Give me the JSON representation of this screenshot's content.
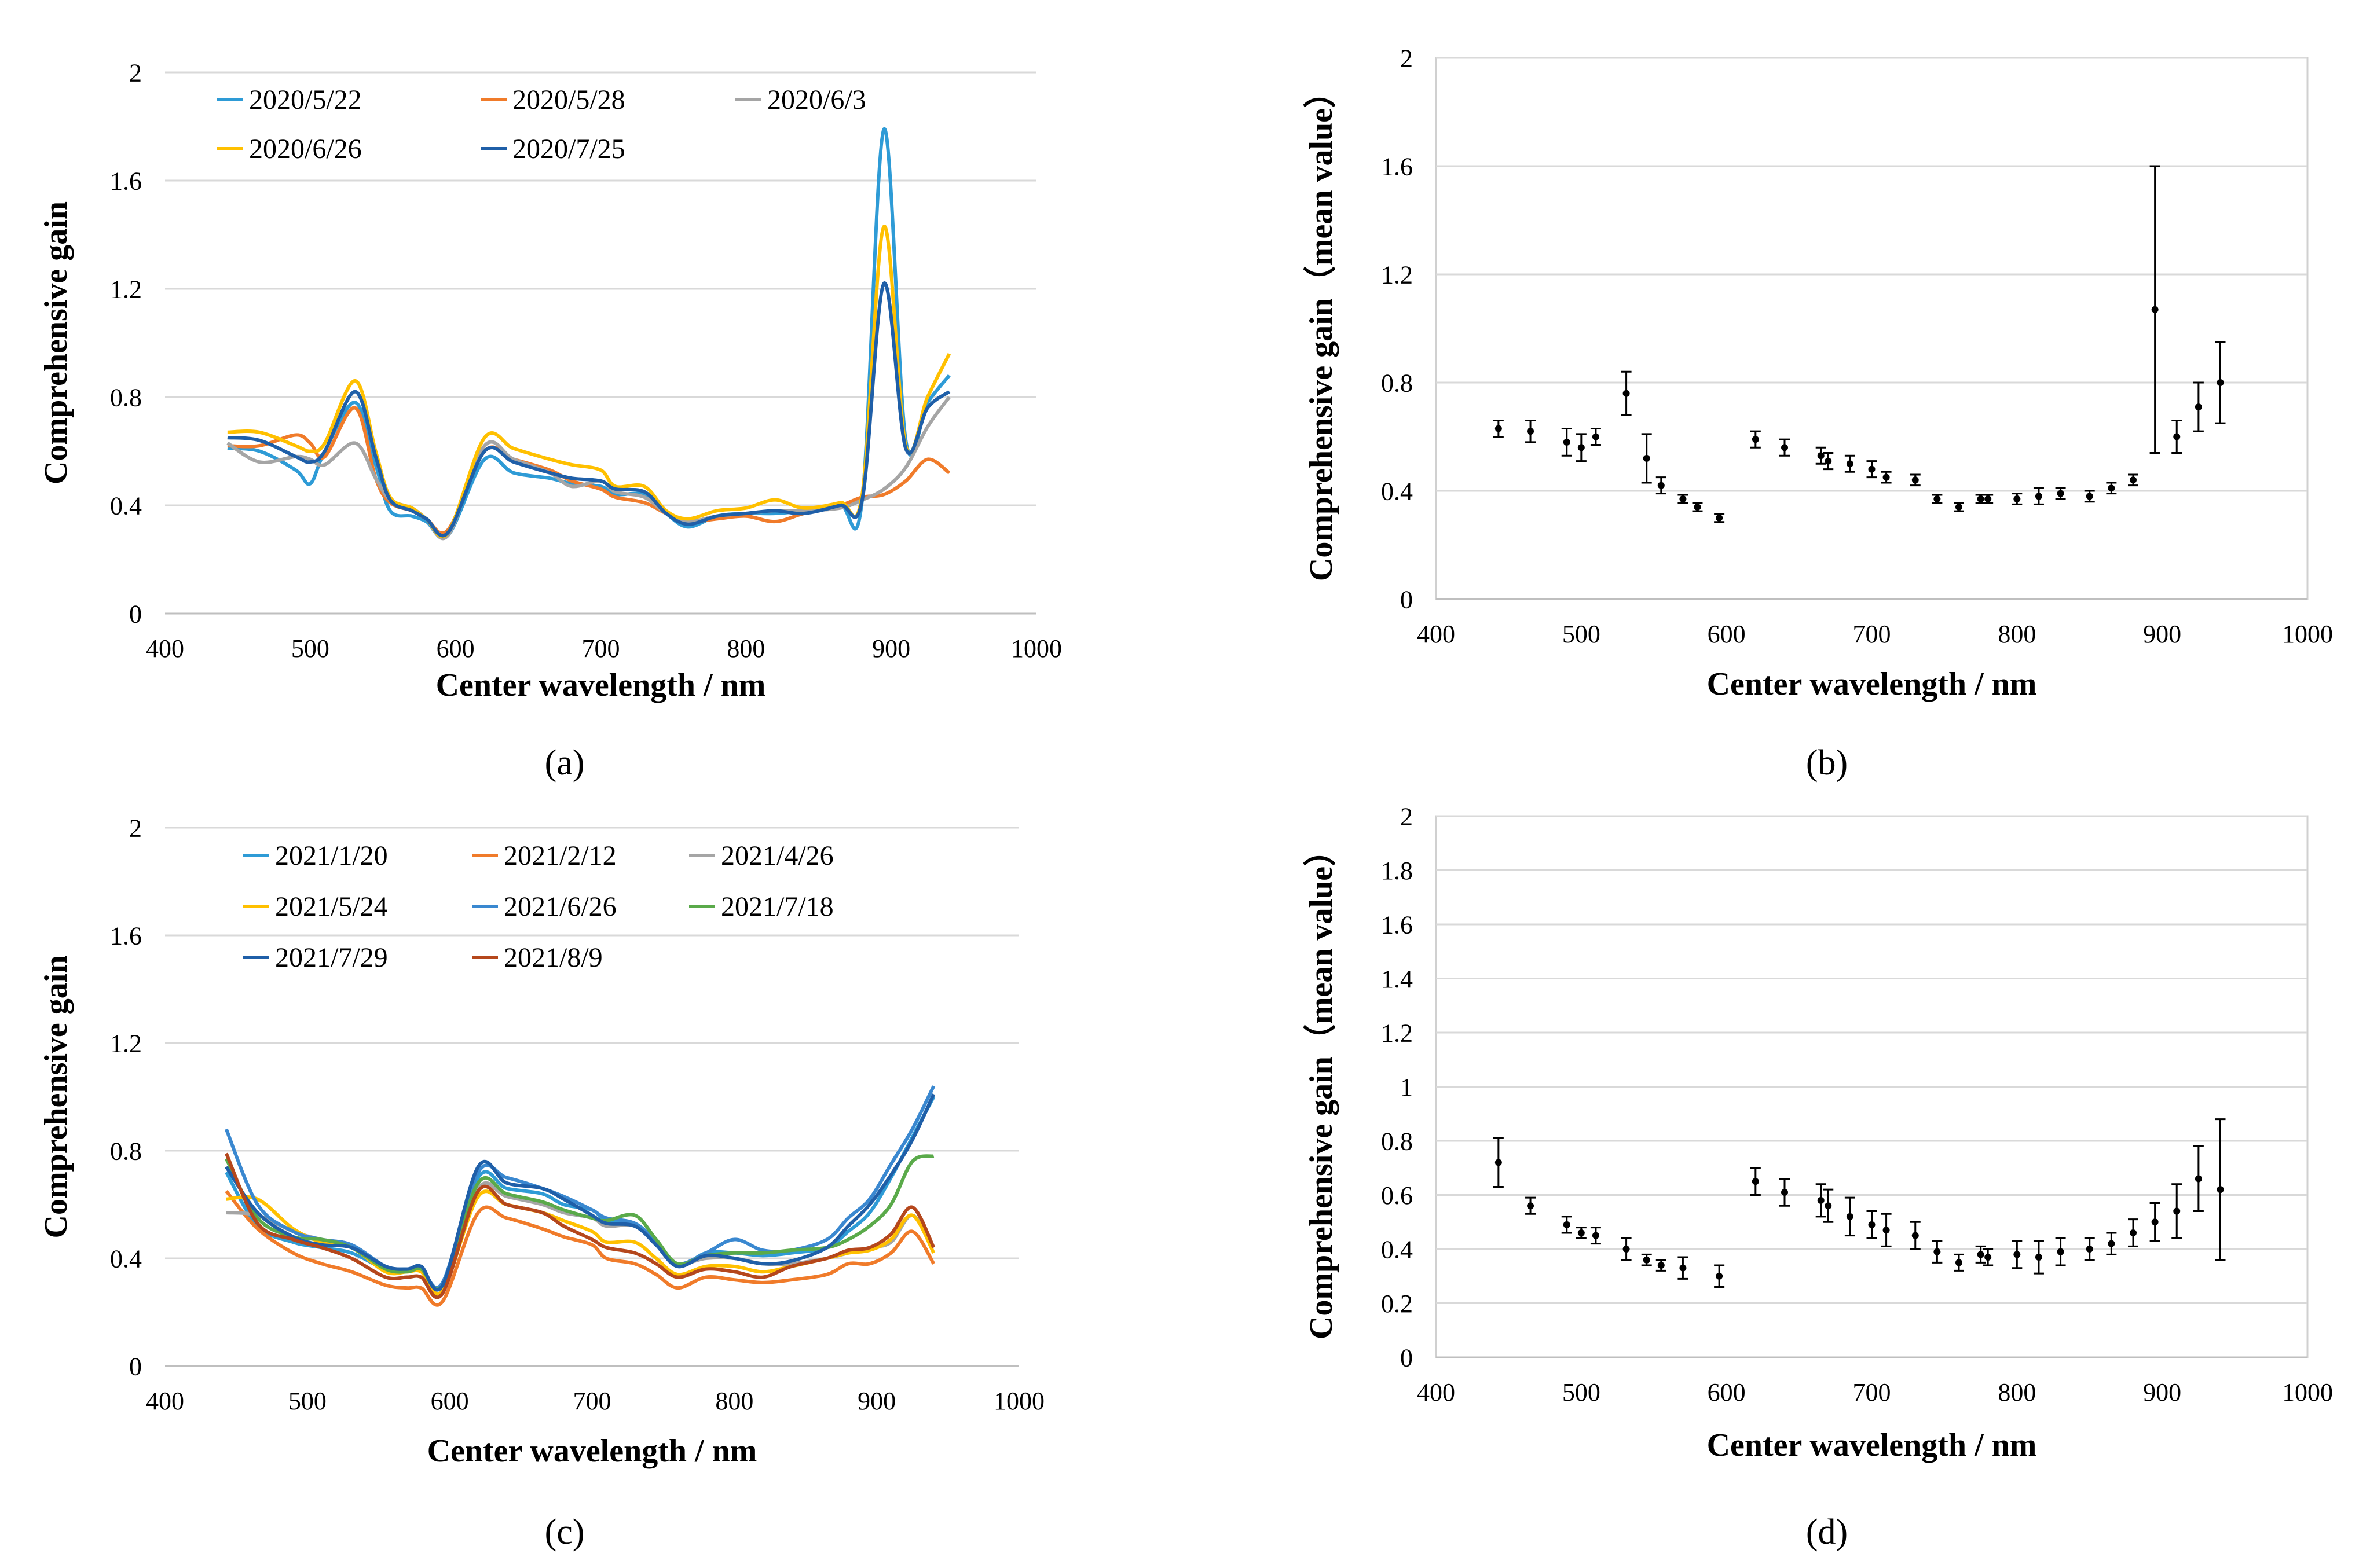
{
  "captions": [
    "(a)",
    "(b)",
    "(c)",
    "(d)"
  ],
  "chart_data": [
    {
      "id": "a",
      "type": "line",
      "xlabel": "Center wavelength / nm",
      "ylabel": "Comprehensive gain",
      "xlim": [
        400,
        1000
      ],
      "ylim": [
        0,
        2
      ],
      "xticks": [
        400,
        500,
        600,
        700,
        800,
        900,
        1000
      ],
      "yticks": [
        "0",
        "0.4",
        "0.8",
        "1.2",
        "1.6",
        "2"
      ],
      "grid": "horizontal",
      "legend": "top",
      "series": [
        {
          "name": "2020/5/22",
          "color": "#2e9bd6",
          "x": [
            443,
            465,
            490,
            500,
            510,
            531,
            545,
            555,
            570,
            580,
            595,
            620,
            640,
            665,
            680,
            700,
            710,
            730,
            745,
            760,
            780,
            800,
            820,
            840,
            865,
            880,
            895,
            910,
            925,
            940
          ],
          "y": [
            0.61,
            0.6,
            0.53,
            0.48,
            0.6,
            0.78,
            0.55,
            0.38,
            0.36,
            0.34,
            0.29,
            0.57,
            0.52,
            0.5,
            0.48,
            0.47,
            0.44,
            0.44,
            0.37,
            0.32,
            0.36,
            0.37,
            0.37,
            0.38,
            0.4,
            0.42,
            1.79,
            0.64,
            0.78,
            0.88
          ]
        },
        {
          "name": "2020/5/28",
          "color": "#f07b2a",
          "x": [
            443,
            465,
            490,
            500,
            510,
            531,
            545,
            555,
            570,
            580,
            595,
            620,
            640,
            665,
            680,
            700,
            710,
            730,
            745,
            760,
            780,
            800,
            820,
            840,
            865,
            880,
            895,
            910,
            925,
            940
          ],
          "y": [
            0.62,
            0.62,
            0.66,
            0.63,
            0.58,
            0.76,
            0.5,
            0.41,
            0.38,
            0.35,
            0.31,
            0.6,
            0.57,
            0.53,
            0.49,
            0.46,
            0.43,
            0.41,
            0.37,
            0.34,
            0.35,
            0.36,
            0.34,
            0.37,
            0.4,
            0.43,
            0.44,
            0.49,
            0.57,
            0.52
          ]
        },
        {
          "name": "2020/6/3",
          "color": "#a5a5a5",
          "x": [
            443,
            465,
            490,
            500,
            510,
            531,
            545,
            555,
            570,
            580,
            595,
            620,
            640,
            665,
            680,
            700,
            710,
            730,
            745,
            760,
            780,
            800,
            820,
            840,
            865,
            880,
            895,
            910,
            925,
            940
          ],
          "y": [
            0.63,
            0.56,
            0.58,
            0.57,
            0.55,
            0.63,
            0.5,
            0.42,
            0.39,
            0.35,
            0.29,
            0.62,
            0.57,
            0.52,
            0.47,
            0.49,
            0.45,
            0.43,
            0.37,
            0.34,
            0.36,
            0.37,
            0.38,
            0.38,
            0.39,
            0.42,
            0.46,
            0.54,
            0.69,
            0.8
          ]
        },
        {
          "name": "2020/6/26",
          "color": "#ffc000",
          "x": [
            443,
            465,
            490,
            500,
            510,
            531,
            545,
            555,
            570,
            580,
            595,
            620,
            640,
            665,
            680,
            700,
            710,
            730,
            745,
            760,
            780,
            800,
            820,
            840,
            865,
            880,
            895,
            910,
            925,
            940
          ],
          "y": [
            0.67,
            0.67,
            0.62,
            0.6,
            0.63,
            0.86,
            0.6,
            0.43,
            0.39,
            0.35,
            0.3,
            0.65,
            0.61,
            0.57,
            0.55,
            0.53,
            0.47,
            0.47,
            0.38,
            0.35,
            0.38,
            0.39,
            0.42,
            0.39,
            0.41,
            0.44,
            1.43,
            0.62,
            0.8,
            0.96
          ]
        },
        {
          "name": "2020/7/25",
          "color": "#1f5fa8",
          "x": [
            443,
            465,
            490,
            500,
            510,
            531,
            545,
            555,
            570,
            580,
            595,
            620,
            640,
            665,
            680,
            700,
            710,
            730,
            745,
            760,
            780,
            800,
            820,
            840,
            865,
            880,
            895,
            910,
            925,
            940
          ],
          "y": [
            0.65,
            0.64,
            0.58,
            0.56,
            0.6,
            0.82,
            0.58,
            0.42,
            0.38,
            0.35,
            0.3,
            0.6,
            0.56,
            0.52,
            0.5,
            0.49,
            0.46,
            0.45,
            0.37,
            0.33,
            0.36,
            0.37,
            0.38,
            0.37,
            0.4,
            0.42,
            1.22,
            0.61,
            0.76,
            0.82
          ]
        }
      ]
    },
    {
      "id": "b",
      "type": "scatter",
      "xlabel": "Center wavelength / nm",
      "ylabel": "Comprehensive gain（mean value）",
      "xlim": [
        400,
        1000
      ],
      "ylim": [
        0,
        2
      ],
      "xticks": [
        400,
        500,
        600,
        700,
        800,
        900,
        1000
      ],
      "yticks": [
        "0",
        "0.4",
        "0.8",
        "1.2",
        "1.6",
        "2"
      ],
      "grid": "horizontal",
      "error_bars": true,
      "x": [
        443,
        465,
        490,
        500,
        510,
        531,
        545,
        555,
        570,
        580,
        595,
        620,
        640,
        665,
        670,
        685,
        700,
        710,
        730,
        745,
        760,
        775,
        780,
        800,
        815,
        830,
        850,
        865,
        880,
        895,
        910,
        925,
        940
      ],
      "y": [
        0.63,
        0.62,
        0.58,
        0.56,
        0.6,
        0.76,
        0.52,
        0.42,
        0.37,
        0.34,
        0.3,
        0.59,
        0.56,
        0.53,
        0.51,
        0.5,
        0.48,
        0.45,
        0.44,
        0.37,
        0.34,
        0.37,
        0.37,
        0.37,
        0.38,
        0.39,
        0.38,
        0.41,
        0.44,
        1.07,
        0.6,
        0.71,
        0.8
      ],
      "err": [
        0.03,
        0.04,
        0.05,
        0.05,
        0.03,
        0.08,
        0.09,
        0.03,
        0.015,
        0.015,
        0.015,
        0.03,
        0.03,
        0.03,
        0.03,
        0.03,
        0.03,
        0.02,
        0.02,
        0.015,
        0.015,
        0.015,
        0.015,
        0.02,
        0.03,
        0.02,
        0.02,
        0.02,
        0.02,
        0.53,
        0.06,
        0.09,
        0.15
      ]
    },
    {
      "id": "c",
      "type": "line",
      "xlabel": "Center wavelength / nm",
      "ylabel": "Comprehensive gain",
      "xlim": [
        400,
        1000
      ],
      "ylim": [
        0,
        2
      ],
      "xticks": [
        400,
        500,
        600,
        700,
        800,
        900,
        1000
      ],
      "yticks": [
        "0",
        "0.4",
        "0.8",
        "1.2",
        "1.6",
        "2"
      ],
      "grid": "horizontal",
      "legend": "top",
      "series": [
        {
          "name": "2021/1/20",
          "color": "#2e9bd6",
          "x": [
            443,
            465,
            490,
            510,
            531,
            555,
            570,
            580,
            595,
            620,
            640,
            665,
            680,
            700,
            710,
            730,
            745,
            760,
            780,
            800,
            820,
            840,
            865,
            880,
            895,
            910,
            925,
            940
          ],
          "y": [
            0.72,
            0.52,
            0.46,
            0.44,
            0.42,
            0.36,
            0.36,
            0.36,
            0.28,
            0.7,
            0.66,
            0.64,
            0.6,
            0.58,
            0.54,
            0.53,
            0.46,
            0.37,
            0.42,
            0.42,
            0.41,
            0.42,
            0.44,
            0.5,
            0.57,
            0.7,
            0.85,
            1.0
          ]
        },
        {
          "name": "2021/2/12",
          "color": "#f07b2a",
          "x": [
            443,
            465,
            490,
            510,
            531,
            555,
            570,
            580,
            595,
            620,
            640,
            665,
            680,
            700,
            710,
            730,
            745,
            760,
            780,
            800,
            820,
            840,
            865,
            880,
            895,
            910,
            925,
            940
          ],
          "y": [
            0.65,
            0.51,
            0.42,
            0.38,
            0.35,
            0.3,
            0.29,
            0.29,
            0.24,
            0.57,
            0.55,
            0.51,
            0.48,
            0.45,
            0.4,
            0.38,
            0.34,
            0.29,
            0.33,
            0.32,
            0.31,
            0.32,
            0.34,
            0.38,
            0.38,
            0.42,
            0.5,
            0.38
          ]
        },
        {
          "name": "2021/4/26",
          "color": "#a5a5a5",
          "x": [
            443,
            465,
            490,
            510,
            531,
            555,
            570,
            580,
            595,
            620,
            640,
            665,
            680,
            700,
            710,
            730,
            745,
            760,
            780,
            800,
            820,
            840,
            865,
            880,
            895,
            910,
            925,
            940
          ],
          "y": [
            0.57,
            0.56,
            0.5,
            0.47,
            0.45,
            0.37,
            0.36,
            0.36,
            0.3,
            0.66,
            0.63,
            0.6,
            0.57,
            0.55,
            0.52,
            0.52,
            0.45,
            0.38,
            0.4,
            0.4,
            0.38,
            0.38,
            0.4,
            0.42,
            0.44,
            0.46,
            0.56,
            0.44
          ]
        },
        {
          "name": "2021/5/24",
          "color": "#ffc000",
          "x": [
            443,
            465,
            490,
            510,
            531,
            555,
            570,
            580,
            595,
            620,
            640,
            665,
            680,
            700,
            710,
            730,
            745,
            760,
            780,
            800,
            820,
            840,
            865,
            880,
            895,
            910,
            925,
            940
          ],
          "y": [
            0.62,
            0.62,
            0.51,
            0.46,
            0.44,
            0.35,
            0.35,
            0.35,
            0.28,
            0.63,
            0.6,
            0.57,
            0.54,
            0.5,
            0.46,
            0.46,
            0.4,
            0.34,
            0.37,
            0.37,
            0.35,
            0.37,
            0.4,
            0.42,
            0.43,
            0.47,
            0.56,
            0.42
          ]
        },
        {
          "name": "2021/6/26",
          "color": "#3a88d0",
          "x": [
            443,
            465,
            490,
            510,
            531,
            555,
            570,
            580,
            595,
            620,
            640,
            665,
            680,
            700,
            710,
            730,
            745,
            760,
            780,
            800,
            820,
            840,
            865,
            880,
            895,
            910,
            925,
            940
          ],
          "y": [
            0.88,
            0.6,
            0.5,
            0.47,
            0.45,
            0.37,
            0.36,
            0.36,
            0.31,
            0.72,
            0.7,
            0.66,
            0.63,
            0.58,
            0.55,
            0.53,
            0.46,
            0.38,
            0.42,
            0.47,
            0.43,
            0.43,
            0.47,
            0.55,
            0.62,
            0.75,
            0.88,
            1.04
          ]
        },
        {
          "name": "2021/7/18",
          "color": "#5aaa4a",
          "x": [
            443,
            465,
            490,
            510,
            531,
            555,
            570,
            580,
            595,
            620,
            640,
            665,
            680,
            700,
            710,
            730,
            745,
            760,
            780,
            800,
            820,
            840,
            865,
            880,
            895,
            910,
            925,
            940
          ],
          "y": [
            0.77,
            0.55,
            0.48,
            0.47,
            0.44,
            0.36,
            0.35,
            0.36,
            0.3,
            0.68,
            0.64,
            0.61,
            0.58,
            0.55,
            0.54,
            0.56,
            0.47,
            0.38,
            0.41,
            0.42,
            0.42,
            0.43,
            0.44,
            0.47,
            0.52,
            0.6,
            0.76,
            0.78
          ]
        },
        {
          "name": "2021/7/29",
          "color": "#1f5fa8",
          "x": [
            443,
            465,
            490,
            510,
            531,
            555,
            570,
            580,
            595,
            620,
            640,
            665,
            680,
            700,
            710,
            730,
            745,
            760,
            780,
            800,
            820,
            840,
            865,
            880,
            895,
            910,
            925,
            940
          ],
          "y": [
            0.74,
            0.57,
            0.48,
            0.45,
            0.44,
            0.37,
            0.36,
            0.37,
            0.3,
            0.74,
            0.68,
            0.66,
            0.62,
            0.56,
            0.53,
            0.52,
            0.45,
            0.37,
            0.41,
            0.4,
            0.38,
            0.39,
            0.44,
            0.52,
            0.6,
            0.71,
            0.84,
            1.01
          ]
        },
        {
          "name": "2021/8/9",
          "color": "#b5471c",
          "x": [
            443,
            465,
            490,
            510,
            531,
            555,
            570,
            580,
            595,
            620,
            640,
            665,
            680,
            700,
            710,
            730,
            745,
            760,
            780,
            800,
            820,
            840,
            865,
            880,
            895,
            910,
            925,
            940
          ],
          "y": [
            0.79,
            0.53,
            0.47,
            0.44,
            0.4,
            0.33,
            0.33,
            0.33,
            0.27,
            0.65,
            0.6,
            0.57,
            0.52,
            0.47,
            0.44,
            0.42,
            0.38,
            0.33,
            0.36,
            0.35,
            0.33,
            0.37,
            0.4,
            0.43,
            0.44,
            0.49,
            0.59,
            0.44
          ]
        }
      ]
    },
    {
      "id": "d",
      "type": "scatter",
      "xlabel": "Center wavelength /  nm",
      "ylabel": "Comprehensive gain（mean value）",
      "xlim": [
        400,
        1000
      ],
      "ylim": [
        0,
        2
      ],
      "xticks": [
        400,
        500,
        600,
        700,
        800,
        900,
        1000
      ],
      "yticks": [
        "0",
        "0.2",
        "0.4",
        "0.6",
        "0.8",
        "1",
        "1.2",
        "1.4",
        "1.6",
        "1.8",
        "2"
      ],
      "grid": "horizontal",
      "error_bars": true,
      "x": [
        443,
        465,
        490,
        500,
        510,
        531,
        545,
        555,
        570,
        595,
        620,
        640,
        665,
        670,
        685,
        700,
        710,
        730,
        745,
        760,
        775,
        780,
        800,
        815,
        830,
        850,
        865,
        880,
        895,
        910,
        925,
        940
      ],
      "y": [
        0.72,
        0.56,
        0.49,
        0.46,
        0.45,
        0.4,
        0.36,
        0.34,
        0.33,
        0.3,
        0.65,
        0.61,
        0.58,
        0.56,
        0.52,
        0.49,
        0.47,
        0.45,
        0.39,
        0.35,
        0.38,
        0.37,
        0.38,
        0.37,
        0.39,
        0.4,
        0.42,
        0.46,
        0.5,
        0.54,
        0.66,
        0.62
      ],
      "err": [
        0.09,
        0.03,
        0.03,
        0.02,
        0.03,
        0.04,
        0.02,
        0.02,
        0.04,
        0.04,
        0.05,
        0.05,
        0.06,
        0.06,
        0.07,
        0.05,
        0.06,
        0.05,
        0.04,
        0.03,
        0.03,
        0.03,
        0.05,
        0.06,
        0.05,
        0.04,
        0.04,
        0.05,
        0.07,
        0.1,
        0.12,
        0.26
      ]
    }
  ]
}
